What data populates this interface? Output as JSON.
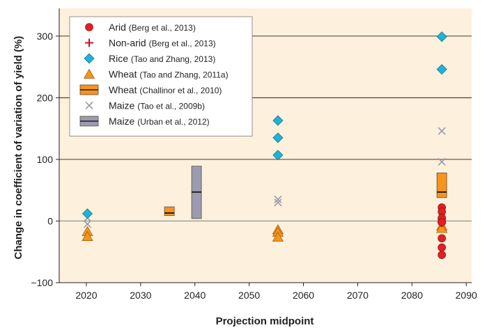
{
  "chart_data": {
    "type": "scatter",
    "xlabel": "Projection midpoint",
    "ylabel": "Change in coefficient of variation of yield (%)",
    "xlim": [
      2015,
      2091
    ],
    "ylim": [
      -100,
      345
    ],
    "xticks": [
      "2020",
      "2030",
      "2040",
      "2050",
      "2060",
      "2070",
      "2080",
      "2090"
    ],
    "yticks": [
      "300",
      "200",
      "100",
      "0",
      "−100"
    ],
    "ytick_values": [
      300,
      200,
      100,
      0,
      -100
    ],
    "xtick_values": [
      2020,
      2030,
      2040,
      2050,
      2060,
      2070,
      2080,
      2090
    ],
    "grid_y": [
      300,
      200,
      100
    ],
    "zero_line": 0,
    "colors": {
      "background": "#fdf0dc",
      "grid": "#231f20",
      "zero_line": "#8a8a8a",
      "arid": "#e31e24",
      "nonarid": "#c8102e",
      "rice": "#1fb3d8",
      "wheat_tao": "#f7941d",
      "wheat_challinor": "#f7941d",
      "maize_tao": "#9a9aa6",
      "maize_urban": "#9c9cb0"
    },
    "legend": {
      "position": "top-left",
      "items": [
        {
          "key": "arid",
          "label": "Arid",
          "citation": "(Berg et al., 2013)",
          "marker": "circle"
        },
        {
          "key": "nonarid",
          "label": "Non-arid",
          "citation": "(Berg et al., 2013)",
          "marker": "plus"
        },
        {
          "key": "rice",
          "label": "Rice",
          "citation": "(Tao and Zhang, 2013)",
          "marker": "diamond"
        },
        {
          "key": "wheat_tao",
          "label": "Wheat",
          "citation": "(Tao and Zhang, 2011a)",
          "marker": "triangle"
        },
        {
          "key": "wheat_challinor",
          "label": "Wheat",
          "citation": "(Challinor et al., 2010)",
          "marker": "box"
        },
        {
          "key": "maize_tao",
          "label": "Maize",
          "citation": "(Tao et al., 2009b)",
          "marker": "cross"
        },
        {
          "key": "maize_urban",
          "label": "Maize",
          "citation": "(Urban et al., 2012)",
          "marker": "box"
        }
      ]
    },
    "series": [
      {
        "key": "arid",
        "marker": "circle",
        "points": [
          [
            2085.5,
            22
          ],
          [
            2085.5,
            15
          ],
          [
            2085.5,
            5
          ],
          [
            2085.5,
            -2
          ],
          [
            2085.5,
            -28
          ],
          [
            2085.5,
            -43
          ],
          [
            2085.5,
            -55
          ]
        ]
      },
      {
        "key": "nonarid",
        "marker": "plus",
        "points": [
          [
            2085.5,
            3
          ],
          [
            2085.5,
            0
          ],
          [
            2085.5,
            -3
          ]
        ]
      },
      {
        "key": "rice",
        "marker": "diamond",
        "points": [
          [
            2020.2,
            12
          ],
          [
            2055.3,
            163
          ],
          [
            2055.3,
            135
          ],
          [
            2055.3,
            107
          ],
          [
            2085.5,
            299
          ],
          [
            2085.5,
            246
          ]
        ]
      },
      {
        "key": "wheat_tao",
        "marker": "triangle",
        "points": [
          [
            2020.2,
            -17
          ],
          [
            2020.2,
            -25
          ],
          [
            2055.3,
            -14
          ],
          [
            2055.3,
            -18
          ],
          [
            2055.3,
            -26
          ],
          [
            2085.5,
            -8
          ],
          [
            2085.5,
            -12
          ]
        ]
      },
      {
        "key": "maize_tao",
        "marker": "cross",
        "points": [
          [
            2020.2,
            5
          ],
          [
            2020.2,
            -5
          ],
          [
            2055.3,
            35
          ],
          [
            2055.3,
            30
          ],
          [
            2085.5,
            146
          ],
          [
            2085.5,
            96
          ],
          [
            2085.5,
            8
          ],
          [
            2085.5,
            0
          ]
        ]
      }
    ],
    "boxes": [
      {
        "key": "wheat_challinor",
        "x": 2035.3,
        "low": 9,
        "high": 23,
        "median": 13
      },
      {
        "key": "wheat_challinor",
        "x": 2085.5,
        "low": 38,
        "high": 78,
        "median": 47
      },
      {
        "key": "maize_urban",
        "x": 2040.3,
        "low": 4,
        "high": 89,
        "median": 47
      }
    ]
  }
}
